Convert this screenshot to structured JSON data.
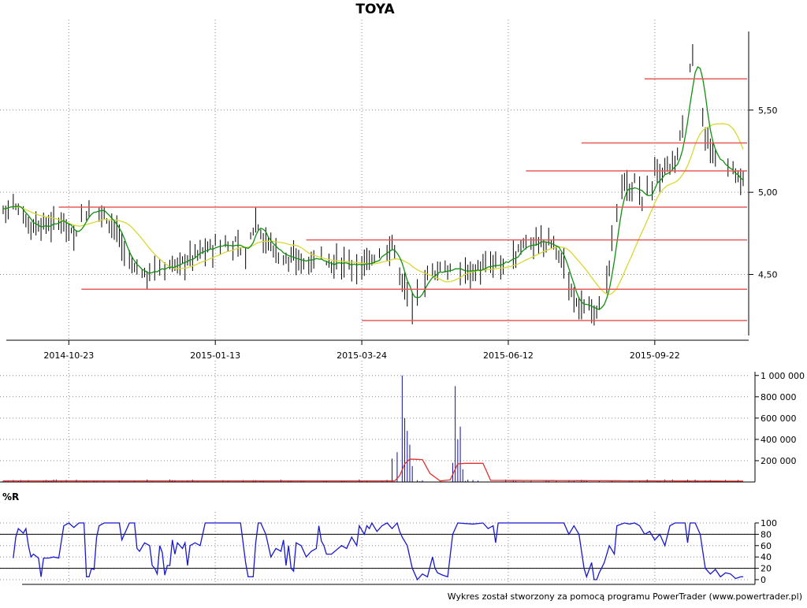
{
  "chart_data": [
    {
      "type": "candlestick",
      "title": "TOYA",
      "ylim": [
        4.1,
        6.05
      ],
      "y_ticks": [
        "4,50",
        "5,00",
        "5,50"
      ],
      "y_tick_values": [
        4.5,
        5.0,
        5.5
      ],
      "x_ticks": [
        "2014-10-23",
        "2015-01-13",
        "2015-03-24",
        "2015-06-12",
        "2015-09-22"
      ],
      "x_tick_index": [
        26,
        84,
        142,
        200,
        258
      ],
      "grid": true,
      "price_knots": [
        [
          0,
          4.9
        ],
        [
          4,
          4.92
        ],
        [
          8,
          4.85
        ],
        [
          12,
          4.8
        ],
        [
          18,
          4.8
        ],
        [
          24,
          4.84
        ],
        [
          28,
          4.72
        ],
        [
          32,
          4.88
        ],
        [
          38,
          4.9
        ],
        [
          44,
          4.8
        ],
        [
          50,
          4.55
        ],
        [
          56,
          4.5
        ],
        [
          62,
          4.55
        ],
        [
          68,
          4.55
        ],
        [
          74,
          4.6
        ],
        [
          80,
          4.65
        ],
        [
          86,
          4.68
        ],
        [
          92,
          4.68
        ],
        [
          96,
          4.62
        ],
        [
          100,
          4.85
        ],
        [
          104,
          4.7
        ],
        [
          110,
          4.62
        ],
        [
          116,
          4.58
        ],
        [
          122,
          4.6
        ],
        [
          128,
          4.58
        ],
        [
          134,
          4.57
        ],
        [
          140,
          4.55
        ],
        [
          146,
          4.58
        ],
        [
          150,
          4.65
        ],
        [
          154,
          4.68
        ],
        [
          158,
          4.45
        ],
        [
          162,
          4.32
        ],
        [
          166,
          4.45
        ],
        [
          170,
          4.52
        ],
        [
          176,
          4.53
        ],
        [
          182,
          4.52
        ],
        [
          188,
          4.53
        ],
        [
          194,
          4.55
        ],
        [
          200,
          4.58
        ],
        [
          206,
          4.68
        ],
        [
          212,
          4.7
        ],
        [
          218,
          4.68
        ],
        [
          222,
          4.55
        ],
        [
          226,
          4.35
        ],
        [
          230,
          4.3
        ],
        [
          234,
          4.3
        ],
        [
          238,
          4.35
        ],
        [
          240,
          4.55
        ],
        [
          242,
          4.8
        ],
        [
          244,
          5.05
        ],
        [
          246,
          5.05
        ],
        [
          248,
          5.0
        ],
        [
          250,
          5.05
        ],
        [
          254,
          4.95
        ],
        [
          258,
          5.1
        ],
        [
          262,
          5.12
        ],
        [
          266,
          5.15
        ],
        [
          268,
          5.3
        ],
        [
          270,
          5.55
        ],
        [
          272,
          5.75
        ],
        [
          274,
          5.9
        ],
        [
          276,
          5.6
        ],
        [
          278,
          5.35
        ],
        [
          280,
          5.22
        ],
        [
          284,
          5.18
        ],
        [
          288,
          5.12
        ],
        [
          292,
          5.05
        ]
      ],
      "sma_green_period": 5,
      "sma_yellow_period": 20,
      "support_resistance": [
        {
          "y": 4.91,
          "from_index": 22,
          "to_index": 293
        },
        {
          "y": 4.71,
          "from_index": 120,
          "to_index": 293
        },
        {
          "y": 4.41,
          "from_index": 31,
          "to_index": 293
        },
        {
          "y": 4.22,
          "from_index": 142,
          "to_index": 293
        },
        {
          "y": 5.13,
          "from_index": 207,
          "to_index": 293
        },
        {
          "y": 5.3,
          "from_index": 229,
          "to_index": 293
        },
        {
          "y": 5.69,
          "from_index": 254,
          "to_index": 293
        }
      ],
      "colors": {
        "bars": "#000000",
        "sma_fast": "#109010",
        "sma_slow": "#d8d830",
        "levels": "#e85a5a",
        "grid": "#8a8a8a"
      }
    },
    {
      "type": "bar",
      "series_name": "volume",
      "ylim": [
        0,
        1050000
      ],
      "y_ticks": [
        "200 000",
        "400 000",
        "600 000",
        "800 000",
        "1 000 000"
      ],
      "y_tick_values": [
        200000,
        400000,
        600000,
        800000,
        1000000
      ],
      "spikes": [
        {
          "index": 154,
          "value": 220000
        },
        {
          "index": 156,
          "value": 280000
        },
        {
          "index": 158,
          "value": 1000000
        },
        {
          "index": 159,
          "value": 600000
        },
        {
          "index": 160,
          "value": 480000
        },
        {
          "index": 161,
          "value": 350000
        },
        {
          "index": 162,
          "value": 150000
        },
        {
          "index": 178,
          "value": 180000
        },
        {
          "index": 179,
          "value": 900000
        },
        {
          "index": 180,
          "value": 400000
        },
        {
          "index": 181,
          "value": 520000
        },
        {
          "index": 182,
          "value": 120000
        }
      ],
      "avg_knots": [
        [
          0,
          10000
        ],
        [
          155,
          10000
        ],
        [
          157,
          60000
        ],
        [
          159,
          170000
        ],
        [
          161,
          215000
        ],
        [
          166,
          210000
        ],
        [
          169,
          80000
        ],
        [
          173,
          10000
        ],
        [
          177,
          20000
        ],
        [
          180,
          170000
        ],
        [
          183,
          175000
        ],
        [
          190,
          175000
        ],
        [
          193,
          15000
        ],
        [
          293,
          8000
        ]
      ],
      "colors": {
        "bars": "#1010a0",
        "avg": "#e03030",
        "grid": "#8a8a8a"
      }
    },
    {
      "type": "line",
      "title": "%R",
      "ylim": [
        0,
        100
      ],
      "y_ticks": [
        "0",
        "20",
        "40",
        "60",
        "80",
        "100"
      ],
      "y_tick_values": [
        0,
        20,
        40,
        60,
        80,
        100
      ],
      "reference_lines": [
        20,
        80
      ],
      "knots": [
        [
          4,
          38
        ],
        [
          5,
          75
        ],
        [
          6,
          90
        ],
        [
          8,
          82
        ],
        [
          9,
          90
        ],
        [
          10,
          60
        ],
        [
          11,
          40
        ],
        [
          12,
          45
        ],
        [
          14,
          38
        ],
        [
          15,
          5
        ],
        [
          16,
          38
        ],
        [
          18,
          38
        ],
        [
          20,
          40
        ],
        [
          22,
          38
        ],
        [
          24,
          95
        ],
        [
          26,
          100
        ],
        [
          28,
          92
        ],
        [
          30,
          100
        ],
        [
          32,
          100
        ],
        [
          33,
          5
        ],
        [
          34,
          5
        ],
        [
          35,
          20
        ],
        [
          36,
          18
        ],
        [
          37,
          75
        ],
        [
          38,
          95
        ],
        [
          40,
          100
        ],
        [
          46,
          100
        ],
        [
          47,
          70
        ],
        [
          48,
          80
        ],
        [
          50,
          100
        ],
        [
          52,
          100
        ],
        [
          53,
          55
        ],
        [
          54,
          50
        ],
        [
          56,
          65
        ],
        [
          58,
          60
        ],
        [
          59,
          25
        ],
        [
          60,
          20
        ],
        [
          61,
          10
        ],
        [
          62,
          60
        ],
        [
          63,
          48
        ],
        [
          64,
          8
        ],
        [
          65,
          25
        ],
        [
          66,
          25
        ],
        [
          67,
          70
        ],
        [
          68,
          45
        ],
        [
          69,
          65
        ],
        [
          70,
          60
        ],
        [
          71,
          55
        ],
        [
          72,
          65
        ],
        [
          73,
          25
        ],
        [
          74,
          60
        ],
        [
          76,
          65
        ],
        [
          78,
          60
        ],
        [
          80,
          100
        ],
        [
          84,
          100
        ],
        [
          90,
          100
        ],
        [
          92,
          100
        ],
        [
          94,
          100
        ],
        [
          96,
          30
        ],
        [
          97,
          5
        ],
        [
          98,
          5
        ],
        [
          99,
          5
        ],
        [
          100,
          65
        ],
        [
          101,
          100
        ],
        [
          102,
          100
        ],
        [
          104,
          80
        ],
        [
          106,
          40
        ],
        [
          108,
          55
        ],
        [
          110,
          50
        ],
        [
          111,
          70
        ],
        [
          112,
          25
        ],
        [
          113,
          60
        ],
        [
          114,
          20
        ],
        [
          115,
          15
        ],
        [
          116,
          65
        ],
        [
          118,
          60
        ],
        [
          120,
          40
        ],
        [
          122,
          50
        ],
        [
          124,
          55
        ],
        [
          125,
          95
        ],
        [
          126,
          68
        ],
        [
          127,
          60
        ],
        [
          128,
          45
        ],
        [
          130,
          45
        ],
        [
          134,
          60
        ],
        [
          136,
          55
        ],
        [
          138,
          75
        ],
        [
          140,
          60
        ],
        [
          141,
          95
        ],
        [
          143,
          80
        ],
        [
          144,
          95
        ],
        [
          145,
          90
        ],
        [
          146,
          100
        ],
        [
          148,
          85
        ],
        [
          150,
          95
        ],
        [
          152,
          100
        ],
        [
          154,
          90
        ],
        [
          156,
          100
        ],
        [
          157,
          85
        ],
        [
          158,
          75
        ],
        [
          160,
          60
        ],
        [
          161,
          40
        ],
        [
          162,
          20
        ],
        [
          163,
          10
        ],
        [
          164,
          0
        ],
        [
          166,
          10
        ],
        [
          168,
          5
        ],
        [
          170,
          40
        ],
        [
          171,
          20
        ],
        [
          172,
          12
        ],
        [
          174,
          8
        ],
        [
          176,
          5
        ],
        [
          178,
          80
        ],
        [
          180,
          100
        ],
        [
          186,
          98
        ],
        [
          190,
          100
        ],
        [
          192,
          90
        ],
        [
          194,
          95
        ],
        [
          195,
          65
        ],
        [
          196,
          100
        ],
        [
          200,
          100
        ],
        [
          206,
          100
        ],
        [
          210,
          100
        ],
        [
          214,
          100
        ],
        [
          218,
          100
        ],
        [
          222,
          100
        ],
        [
          224,
          80
        ],
        [
          226,
          95
        ],
        [
          228,
          80
        ],
        [
          230,
          20
        ],
        [
          231,
          5
        ],
        [
          233,
          30
        ],
        [
          234,
          0
        ],
        [
          235,
          0
        ],
        [
          236,
          12
        ],
        [
          238,
          30
        ],
        [
          240,
          60
        ],
        [
          242,
          45
        ],
        [
          243,
          95
        ],
        [
          246,
          100
        ],
        [
          248,
          98
        ],
        [
          250,
          100
        ],
        [
          252,
          95
        ],
        [
          254,
          80
        ],
        [
          256,
          85
        ],
        [
          258,
          70
        ],
        [
          260,
          80
        ],
        [
          262,
          60
        ],
        [
          264,
          95
        ],
        [
          266,
          100
        ],
        [
          270,
          100
        ],
        [
          271,
          65
        ],
        [
          272,
          100
        ],
        [
          274,
          100
        ],
        [
          276,
          80
        ],
        [
          278,
          20
        ],
        [
          280,
          10
        ],
        [
          282,
          18
        ],
        [
          284,
          5
        ],
        [
          286,
          12
        ],
        [
          288,
          10
        ],
        [
          290,
          2
        ],
        [
          292,
          5
        ],
        [
          293,
          5
        ]
      ],
      "colors": {
        "line": "#1818d0",
        "refs": "#000000",
        "grid": "#8a8a8a"
      }
    }
  ],
  "credit": "Wykres został stworzony za pomocą programu PowerTrader (www.powertrader.pl)"
}
